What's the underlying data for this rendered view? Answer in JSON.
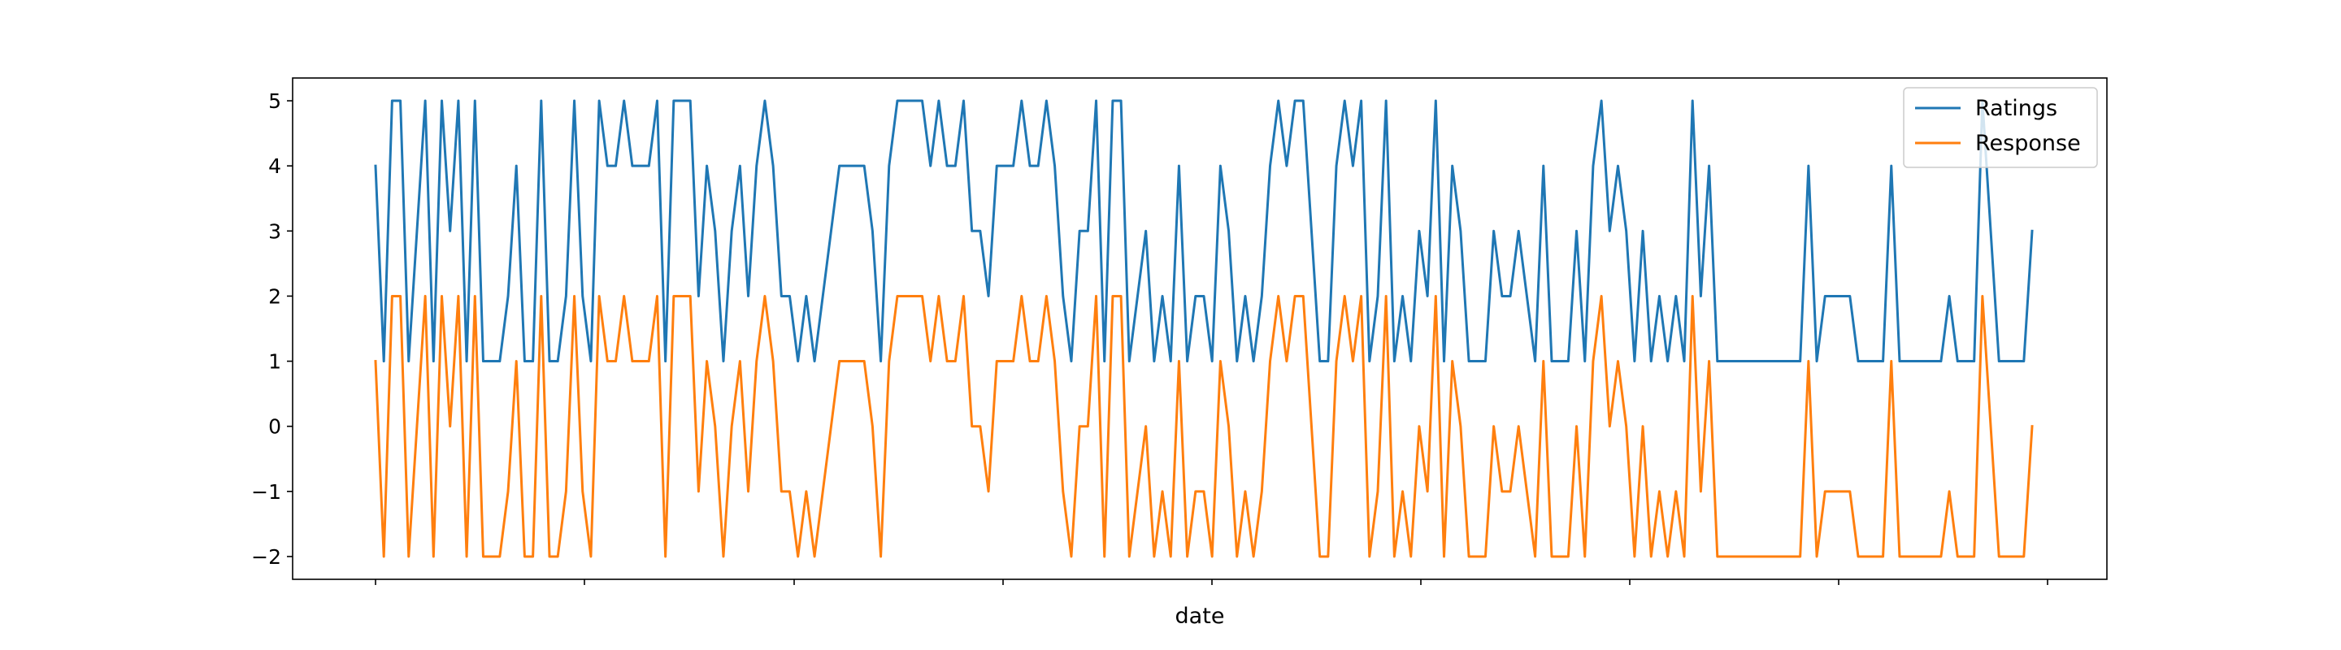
{
  "chart_data": {
    "type": "line",
    "xlabel": "date",
    "ylabel": "",
    "ylim": [
      -2.35,
      5.35
    ],
    "yticks": [
      -2,
      -1,
      0,
      1,
      2,
      3,
      4,
      5
    ],
    "grid": false,
    "legend_position": "top-right",
    "colors": {
      "Ratings": "#1f77b4",
      "Response": "#ff7f0e"
    },
    "series": [
      {
        "name": "Ratings",
        "values": [
          4,
          1,
          5,
          5,
          1,
          3,
          5,
          1,
          5,
          3,
          5,
          1,
          5,
          1,
          1,
          1,
          2,
          4,
          1,
          1,
          5,
          1,
          1,
          2,
          5,
          2,
          1,
          5,
          4,
          4,
          5,
          4,
          4,
          4,
          5,
          1,
          5,
          5,
          5,
          2,
          4,
          3,
          1,
          3,
          4,
          2,
          4,
          5,
          4,
          2,
          2,
          1,
          2,
          1,
          2,
          3,
          4,
          4,
          4,
          4,
          3,
          1,
          4,
          5,
          5,
          5,
          5,
          4,
          5,
          4,
          4,
          5,
          3,
          3,
          2,
          4,
          4,
          4,
          5,
          4,
          4,
          5,
          4,
          2,
          1,
          3,
          3,
          5,
          1,
          5,
          5,
          1,
          2,
          3,
          1,
          2,
          1,
          4,
          1,
          2,
          2,
          1,
          4,
          3,
          1,
          2,
          1,
          2,
          4,
          5,
          4,
          5,
          5,
          3,
          1,
          1,
          4,
          5,
          4,
          5,
          1,
          2,
          5,
          1,
          2,
          1,
          3,
          2,
          5,
          1,
          4,
          3,
          1,
          1,
          1,
          3,
          2,
          2,
          3,
          2,
          1,
          4,
          1,
          1,
          1,
          3,
          1,
          4,
          5,
          3,
          4,
          3,
          1,
          3,
          1,
          2,
          1,
          2,
          1,
          5,
          2,
          4,
          1,
          1,
          1,
          1,
          1,
          1,
          1,
          1,
          1,
          1,
          1,
          4,
          1,
          2,
          2,
          2,
          2,
          1,
          1,
          1,
          1,
          4,
          1,
          1,
          1,
          1,
          1,
          1,
          2,
          1,
          1,
          1,
          5,
          3,
          1,
          1,
          1,
          1,
          3
        ]
      },
      {
        "name": "Response",
        "values": [
          1,
          -2,
          2,
          2,
          -2,
          0,
          2,
          -2,
          2,
          0,
          2,
          -2,
          2,
          -2,
          -2,
          -2,
          -1,
          1,
          -2,
          -2,
          2,
          -2,
          -2,
          -1,
          2,
          -1,
          -2,
          2,
          1,
          1,
          2,
          1,
          1,
          1,
          2,
          -2,
          2,
          2,
          2,
          -1,
          1,
          0,
          -2,
          0,
          1,
          -1,
          1,
          2,
          1,
          -1,
          -1,
          -2,
          -1,
          -2,
          -1,
          0,
          1,
          1,
          1,
          1,
          0,
          -2,
          1,
          2,
          2,
          2,
          2,
          1,
          2,
          1,
          1,
          2,
          0,
          0,
          -1,
          1,
          1,
          1,
          2,
          1,
          1,
          2,
          1,
          -1,
          -2,
          0,
          0,
          2,
          -2,
          2,
          2,
          -2,
          -1,
          0,
          -2,
          -1,
          -2,
          1,
          -2,
          -1,
          -1,
          -2,
          1,
          0,
          -2,
          -1,
          -2,
          -1,
          1,
          2,
          1,
          2,
          2,
          0,
          -2,
          -2,
          1,
          2,
          1,
          2,
          -2,
          -1,
          2,
          -2,
          -1,
          -2,
          0,
          -1,
          2,
          -2,
          1,
          0,
          -2,
          -2,
          -2,
          0,
          -1,
          -1,
          0,
          -1,
          -2,
          1,
          -2,
          -2,
          -2,
          0,
          -2,
          1,
          2,
          0,
          1,
          0,
          -2,
          0,
          -2,
          -1,
          -2,
          -1,
          -2,
          2,
          -1,
          1,
          -2,
          -2,
          -2,
          -2,
          -2,
          -2,
          -2,
          -2,
          -2,
          -2,
          -2,
          1,
          -2,
          -1,
          -1,
          -1,
          -1,
          -2,
          -2,
          -2,
          -2,
          1,
          -2,
          -2,
          -2,
          -2,
          -2,
          -2,
          -1,
          -2,
          -2,
          -2,
          2,
          0,
          -2,
          -2,
          -2,
          -2,
          0
        ]
      }
    ]
  }
}
